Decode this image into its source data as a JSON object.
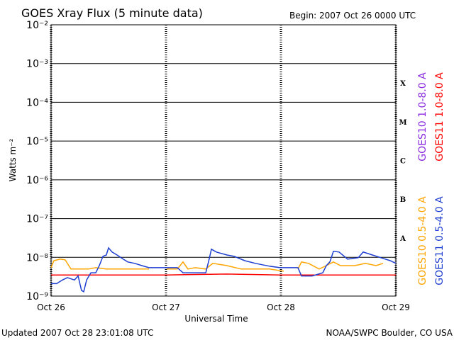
{
  "chart_data": {
    "type": "line",
    "title": "GOES Xray Flux (5 minute data)",
    "subtitle": "Begin:  2007 Oct 26 0000 UTC",
    "x_label": "Universal Time",
    "y_label": "Watts m⁻²",
    "footer_left": "Updated 2007 Oct 28 23:01:08 UTC",
    "footer_right": "NOAA/SWPC Boulder, CO USA",
    "class_labels": [
      "X",
      "M",
      "C",
      "B",
      "A"
    ],
    "log_scale": true,
    "grid": true,
    "xlim": [
      0,
      3
    ],
    "xticks": [
      {
        "value": 0,
        "label": "Oct 26"
      },
      {
        "value": 1,
        "label": "Oct 27"
      },
      {
        "value": 2,
        "label": "Oct 28"
      },
      {
        "value": 3,
        "label": "Oct 29"
      }
    ],
    "ylim": [
      1e-09,
      0.01
    ],
    "yticks": [
      {
        "value": 1e-09,
        "label": "10⁻⁹"
      },
      {
        "value": 1e-08,
        "label": "10⁻⁸"
      },
      {
        "value": 1e-07,
        "label": "10⁻⁷"
      },
      {
        "value": 1e-06,
        "label": "10⁻⁶"
      },
      {
        "value": 1e-05,
        "label": "10⁻⁵"
      },
      {
        "value": 0.0001,
        "label": "10⁻⁴"
      },
      {
        "value": 0.001,
        "label": "10⁻³"
      },
      {
        "value": 0.01,
        "label": "10⁻²"
      }
    ],
    "series": [
      {
        "name": "GOES10 1.0-8.0 A",
        "color": "#8a2be2",
        "x": [],
        "values": []
      },
      {
        "name": "GOES11 1.0-8.0 A",
        "color": "#ff0000",
        "x": [
          0,
          1,
          1.53,
          2,
          3
        ],
        "values": [
          3.5e-09,
          3.5e-09,
          3.7e-09,
          3.5e-09,
          3.5e-09
        ]
      },
      {
        "name": "GOES10 0.5-4.0 A",
        "color": "#ffa500",
        "x": [
          0,
          0.025,
          0.08,
          0.123,
          0.173,
          0.235,
          0.327,
          0.389,
          0.481,
          0.605,
          0.79,
          0.852,
          0.93,
          1.006,
          1.099,
          1.148,
          1.191,
          1.253,
          1.346,
          1.407,
          1.531,
          1.654,
          1.778,
          1.901,
          2.025,
          2.09,
          2.148,
          2.179,
          2.241,
          2.333,
          2.395,
          2.457,
          2.519,
          2.642,
          2.735,
          2.827,
          2.889
        ],
        "values": [
          5.4e-09,
          8.2e-09,
          9e-09,
          8.6e-09,
          5e-09,
          5e-09,
          5e-09,
          5.4e-09,
          5e-09,
          5e-09,
          5e-09,
          5e-09,
          null,
          5e-09,
          5e-09,
          7.6e-09,
          5e-09,
          5.4e-09,
          5e-09,
          7e-09,
          6.1e-09,
          5e-09,
          5e-09,
          5e-09,
          4.4e-09,
          null,
          5e-09,
          7.6e-09,
          7e-09,
          5e-09,
          6.1e-09,
          7.6e-09,
          6.1e-09,
          6.1e-09,
          7e-09,
          6.1e-09,
          7e-09
        ]
      },
      {
        "name": "GOES11 0.5-4.0 A",
        "color": "#1f3fd0",
        "x": [
          0,
          0.049,
          0.099,
          0.142,
          0.204,
          0.235,
          0.265,
          0.284,
          0.309,
          0.346,
          0.389,
          0.42,
          0.451,
          0.481,
          0.5,
          0.531,
          0.574,
          0.617,
          0.667,
          0.728,
          0.79,
          0.852,
          1.006,
          1.099,
          1.148,
          1.253,
          1.346,
          1.377,
          1.395,
          1.438,
          1.531,
          1.593,
          1.685,
          1.778,
          1.901,
          1.994,
          2.148,
          2.179,
          2.272,
          2.364,
          2.395,
          2.426,
          2.457,
          2.506,
          2.58,
          2.673,
          2.716,
          2.796,
          2.889,
          2.951,
          3
        ],
        "values": [
          2.1e-09,
          2.1e-09,
          2.6e-09,
          3e-09,
          2.6e-09,
          3.3e-09,
          1.4e-09,
          1.3e-09,
          2.6e-09,
          4e-09,
          4e-09,
          6.1e-09,
          1.06e-08,
          1.15e-08,
          1.76e-08,
          1.37e-08,
          1.15e-08,
          9.4e-09,
          7.6e-09,
          7e-09,
          6.1e-09,
          5.4e-09,
          5.4e-09,
          5.4e-09,
          4e-09,
          4e-09,
          4e-09,
          9.4e-09,
          1.62e-08,
          1.37e-08,
          1.15e-08,
          1.06e-08,
          8.2e-09,
          7e-09,
          5.9e-09,
          5.4e-09,
          5.4e-09,
          3.3e-09,
          3.3e-09,
          4e-09,
          6.1e-09,
          7.6e-09,
          1.43e-08,
          1.37e-08,
          9e-09,
          9.8e-09,
          1.37e-08,
          1.15e-08,
          9.4e-09,
          8.2e-09,
          7e-09
        ]
      }
    ]
  }
}
